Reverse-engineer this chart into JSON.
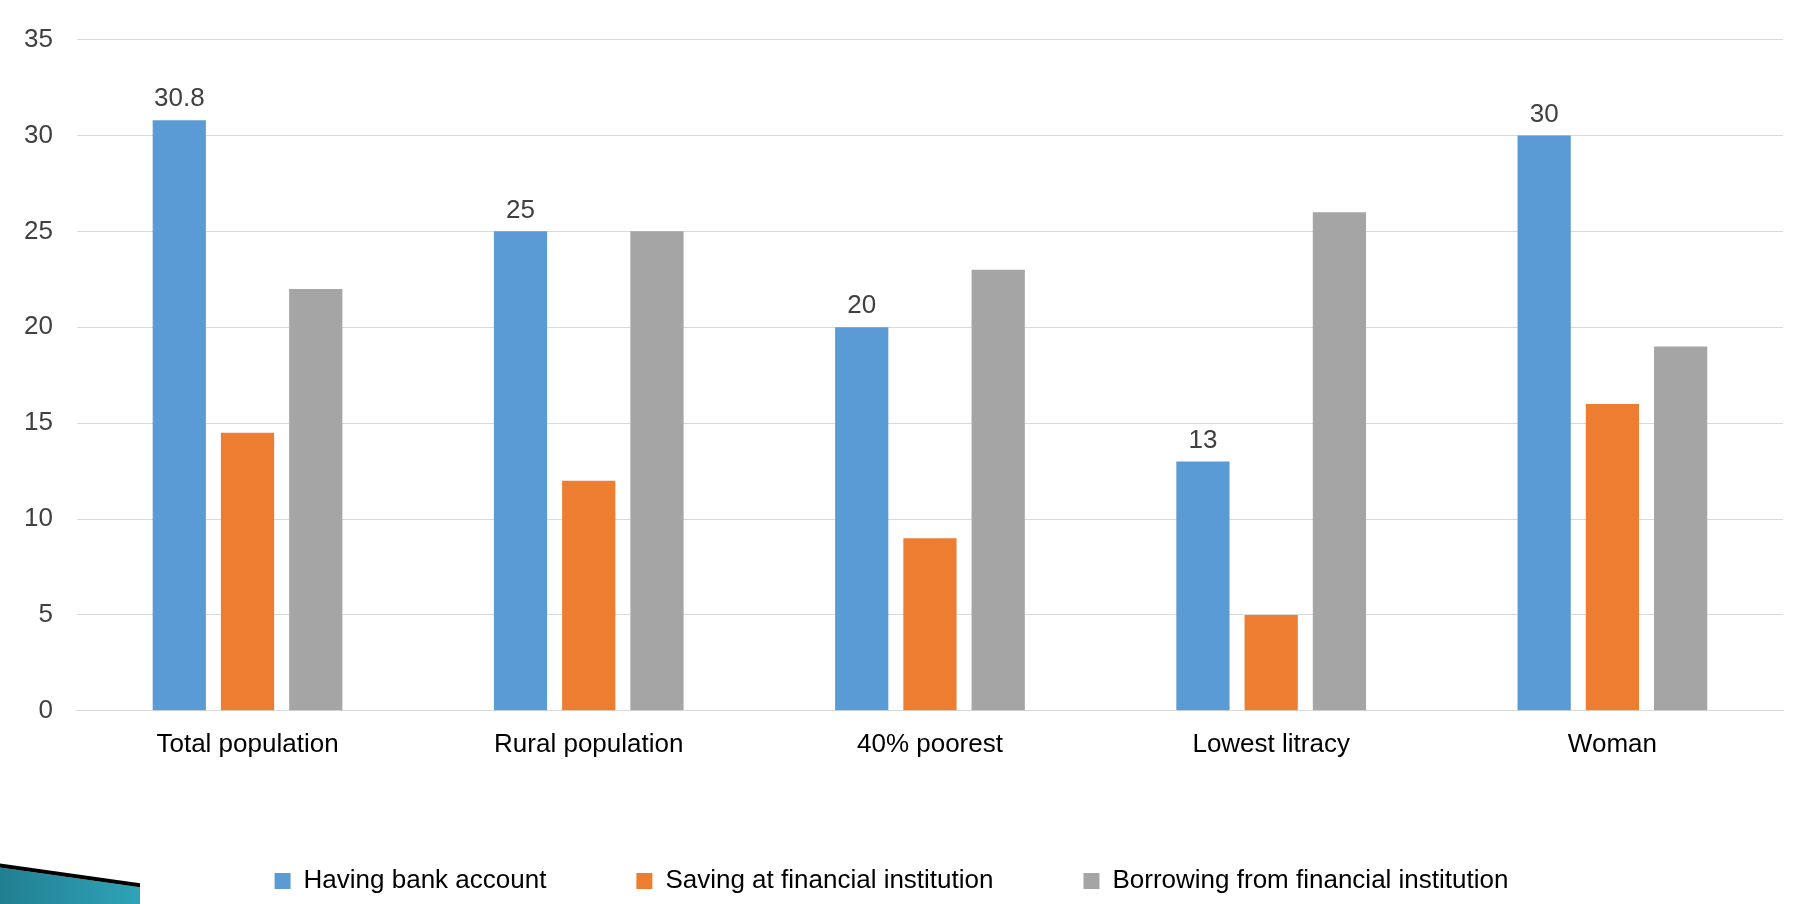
{
  "chart_data": {
    "type": "bar",
    "categories": [
      "Total population",
      "Rural population",
      "40% poorest",
      "Lowest litracy",
      "Woman"
    ],
    "series": [
      {
        "name": "Having bank account",
        "color": "#5b9bd5",
        "values": [
          30.8,
          25,
          20,
          13,
          30
        ],
        "value_labels": [
          "30.8",
          "25",
          "20",
          "13",
          "30"
        ]
      },
      {
        "name": "Saving at financial institution",
        "color": "#ed7d31",
        "values": [
          14.5,
          12,
          9,
          5,
          16
        ]
      },
      {
        "name": "Borrowing from financial institution",
        "color": "#a5a5a5",
        "values": [
          22,
          25,
          23,
          26,
          19
        ]
      }
    ],
    "ylim": [
      0,
      35
    ],
    "yticks": [
      0,
      5,
      10,
      15,
      20,
      25,
      30,
      35
    ],
    "grid": "y",
    "legend": "bottom"
  }
}
